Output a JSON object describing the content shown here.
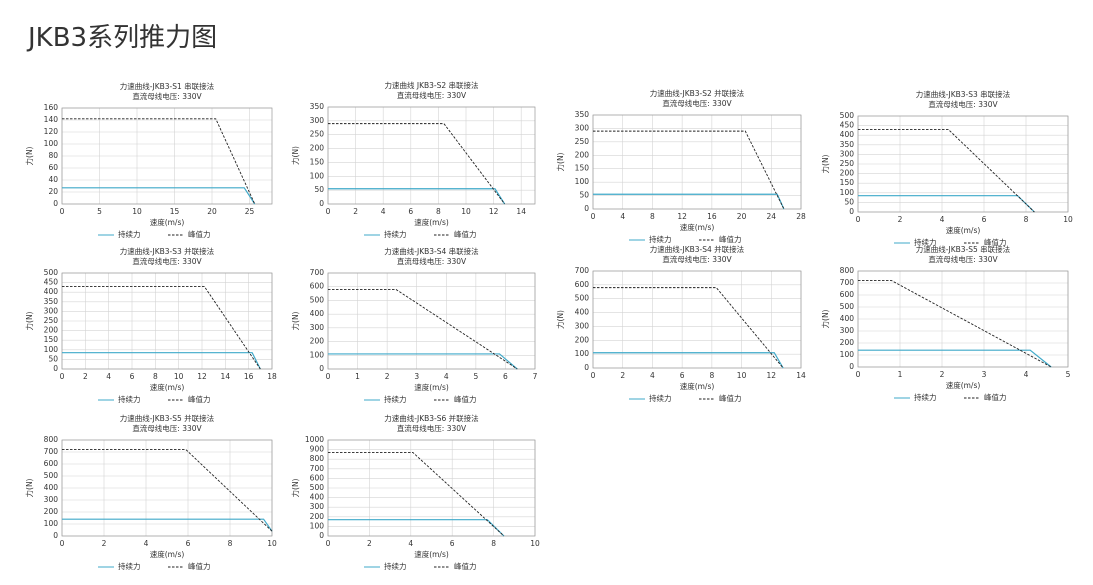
{
  "title": "JKB3系列推力图",
  "chart_data": [
    {
      "type": "line",
      "title": "力速曲线-JKB3-S1 串联接法",
      "subtitle": "直流母线电压: 330V",
      "x_label": "速度(m/s)",
      "y_label": "力(N)",
      "grid": true,
      "xlim": [
        0,
        28
      ],
      "xticks": [
        0,
        5,
        10,
        15,
        20,
        25
      ],
      "ylim": [
        0,
        160
      ],
      "yticks": [
        0,
        20,
        40,
        60,
        80,
        100,
        120,
        140,
        160
      ],
      "series": [
        {
          "name": "持续力",
          "color": "#3fa9c9",
          "line_style": "solid",
          "x": [
            0,
            24.3,
            25.7
          ],
          "values": [
            27,
            27,
            0
          ]
        },
        {
          "name": "峰值力",
          "color": "#222222",
          "line_style": "dashed",
          "x": [
            0,
            20.5,
            25.7
          ],
          "values": [
            142,
            142,
            0
          ]
        }
      ]
    },
    {
      "type": "line",
      "title": "力速曲线 JKB3-S2 串联接法",
      "subtitle": "直流母线电压: 330V",
      "x_label": "速度(m/s)",
      "y_label": "力(N)",
      "grid": true,
      "xlim": [
        0,
        15
      ],
      "xticks": [
        0,
        2,
        4,
        6,
        8,
        10,
        12,
        14
      ],
      "ylim": [
        0,
        350
      ],
      "yticks": [
        0,
        50,
        100,
        150,
        200,
        250,
        300,
        350
      ],
      "series": [
        {
          "name": "持续力",
          "color": "#3fa9c9",
          "line_style": "solid",
          "x": [
            0,
            12.1,
            12.8
          ],
          "values": [
            55,
            55,
            0
          ]
        },
        {
          "name": "峰值力",
          "color": "#222222",
          "line_style": "dashed",
          "x": [
            0,
            8.4,
            12.8
          ],
          "values": [
            290,
            290,
            0
          ]
        }
      ]
    },
    {
      "type": "line",
      "title": "力速曲线-JKB3-S2 并联接法",
      "subtitle": "直流母线电压: 330V",
      "x_label": "速度(m/s)",
      "y_label": "力(N)",
      "grid": true,
      "xlim": [
        0,
        28
      ],
      "xticks": [
        0,
        4,
        8,
        12,
        16,
        20,
        24,
        28
      ],
      "ylim": [
        0,
        350
      ],
      "yticks": [
        0,
        50,
        100,
        150,
        200,
        250,
        300,
        350
      ],
      "series": [
        {
          "name": "持续力",
          "color": "#3fa9c9",
          "line_style": "solid",
          "x": [
            0,
            24.8,
            25.7
          ],
          "values": [
            55,
            55,
            0
          ]
        },
        {
          "name": "峰值力",
          "color": "#222222",
          "line_style": "dashed",
          "x": [
            0,
            20.5,
            25.7
          ],
          "values": [
            290,
            290,
            0
          ]
        }
      ]
    },
    {
      "type": "line",
      "title": "力速曲线-JKB3-S3 串联接法",
      "subtitle": "直流母线电压: 330V",
      "x_label": "速度(m/s)",
      "y_label": "力(N)",
      "grid": true,
      "xlim": [
        0,
        10
      ],
      "xticks": [
        0,
        2,
        4,
        6,
        8,
        10
      ],
      "ylim": [
        0,
        500
      ],
      "yticks": [
        0,
        50,
        100,
        150,
        200,
        250,
        300,
        350,
        400,
        450,
        500
      ],
      "series": [
        {
          "name": "持续力",
          "color": "#3fa9c9",
          "line_style": "solid",
          "x": [
            0,
            7.6,
            8.4
          ],
          "values": [
            85,
            85,
            0
          ]
        },
        {
          "name": "峰值力",
          "color": "#222222",
          "line_style": "dashed",
          "x": [
            0,
            4.3,
            8.4
          ],
          "values": [
            430,
            430,
            0
          ]
        }
      ]
    },
    {
      "type": "line",
      "title": "力速曲线-JKB3-S3 并联接法",
      "subtitle": "直流母线电压: 330V",
      "x_label": "速度(m/s)",
      "y_label": "力(N)",
      "grid": true,
      "xlim": [
        0,
        18
      ],
      "xticks": [
        0,
        2,
        4,
        6,
        8,
        10,
        12,
        14,
        16,
        18
      ],
      "ylim": [
        0,
        500
      ],
      "yticks": [
        0,
        50,
        100,
        150,
        200,
        250,
        300,
        350,
        400,
        450,
        500
      ],
      "series": [
        {
          "name": "持续力",
          "color": "#3fa9c9",
          "line_style": "solid",
          "x": [
            0,
            16.3,
            17
          ],
          "values": [
            85,
            85,
            0
          ]
        },
        {
          "name": "峰值力",
          "color": "#222222",
          "line_style": "dashed",
          "x": [
            0,
            12.2,
            17
          ],
          "values": [
            430,
            430,
            0
          ]
        }
      ]
    },
    {
      "type": "line",
      "title": "力速曲线-JKB3-S4 串联接法",
      "subtitle": "直流母线电压: 330V",
      "x_label": "速度(m/s)",
      "y_label": "力(N)",
      "grid": true,
      "xlim": [
        0,
        7
      ],
      "xticks": [
        0,
        1,
        2,
        3,
        4,
        5,
        6,
        7
      ],
      "ylim": [
        0,
        700
      ],
      "yticks": [
        0,
        100,
        200,
        300,
        400,
        500,
        600,
        700
      ],
      "series": [
        {
          "name": "持续力",
          "color": "#3fa9c9",
          "line_style": "solid",
          "x": [
            0,
            5.8,
            6.4
          ],
          "values": [
            110,
            110,
            0
          ]
        },
        {
          "name": "峰值力",
          "color": "#222222",
          "line_style": "dashed",
          "x": [
            0,
            2.3,
            6.4
          ],
          "values": [
            580,
            580,
            0
          ]
        }
      ]
    },
    {
      "type": "line",
      "title": "力速曲线-JKB3-S4 并联接法",
      "subtitle": "直流母线电压: 330V",
      "x_label": "速度(m/s)",
      "y_label": "力(N)",
      "grid": true,
      "xlim": [
        0,
        14
      ],
      "xticks": [
        0,
        2,
        4,
        6,
        8,
        10,
        12,
        14
      ],
      "ylim": [
        0,
        700
      ],
      "yticks": [
        0,
        100,
        200,
        300,
        400,
        500,
        600,
        700
      ],
      "series": [
        {
          "name": "持续力",
          "color": "#3fa9c9",
          "line_style": "solid",
          "x": [
            0,
            12.2,
            12.8
          ],
          "values": [
            110,
            110,
            0
          ]
        },
        {
          "name": "峰值力",
          "color": "#222222",
          "line_style": "dashed",
          "x": [
            0,
            8.3,
            12.8
          ],
          "values": [
            580,
            580,
            0
          ]
        }
      ]
    },
    {
      "type": "line",
      "title": "力速曲线-JKB3-S5 串联接法",
      "subtitle": "直流母线电压: 330V",
      "x_label": "速度(m/s)",
      "y_label": "力(N)",
      "grid": true,
      "xlim": [
        0,
        5
      ],
      "xticks": [
        0,
        1,
        2,
        3,
        4,
        5
      ],
      "ylim": [
        0,
        800
      ],
      "yticks": [
        0,
        100,
        200,
        300,
        400,
        500,
        600,
        700,
        800
      ],
      "series": [
        {
          "name": "持续力",
          "color": "#3fa9c9",
          "line_style": "solid",
          "x": [
            0,
            4.1,
            4.6
          ],
          "values": [
            140,
            140,
            0
          ]
        },
        {
          "name": "峰值力",
          "color": "#222222",
          "line_style": "dashed",
          "x": [
            0,
            0.8,
            4.6
          ],
          "values": [
            720,
            720,
            0
          ]
        }
      ]
    },
    {
      "type": "line",
      "title": "力速曲线-JKB3-S5 并联接法",
      "subtitle": "直流母线电压: 330V",
      "x_label": "速度(m/s)",
      "y_label": "力(N)",
      "grid": true,
      "xlim": [
        0,
        10
      ],
      "xticks": [
        0,
        2,
        4,
        6,
        8,
        10
      ],
      "ylim": [
        0,
        800
      ],
      "yticks": [
        0,
        100,
        200,
        300,
        400,
        500,
        600,
        700,
        800
      ],
      "series": [
        {
          "name": "持续力",
          "color": "#3fa9c9",
          "line_style": "solid",
          "x": [
            0,
            9.6,
            10
          ],
          "values": [
            140,
            140,
            40
          ]
        },
        {
          "name": "峰值力",
          "color": "#222222",
          "line_style": "dashed",
          "x": [
            0,
            5.9,
            10
          ],
          "values": [
            720,
            720,
            40
          ]
        }
      ]
    },
    {
      "type": "line",
      "title": "力速曲线-JKB3-S6 并联接法",
      "subtitle": "直流母线电压: 330V",
      "x_label": "速度(m/s)",
      "y_label": "力(N)",
      "grid": true,
      "xlim": [
        0,
        10
      ],
      "xticks": [
        0,
        2,
        4,
        6,
        8,
        10
      ],
      "ylim": [
        0,
        1000
      ],
      "yticks": [
        0,
        100,
        200,
        300,
        400,
        500,
        600,
        700,
        800,
        900,
        1000
      ],
      "series": [
        {
          "name": "持续力",
          "color": "#3fa9c9",
          "line_style": "solid",
          "x": [
            0,
            7.7,
            8.5
          ],
          "values": [
            170,
            170,
            0
          ]
        },
        {
          "name": "峰值力",
          "color": "#222222",
          "line_style": "dashed",
          "x": [
            0,
            4.1,
            8.5
          ],
          "values": [
            870,
            870,
            0
          ]
        }
      ]
    }
  ]
}
